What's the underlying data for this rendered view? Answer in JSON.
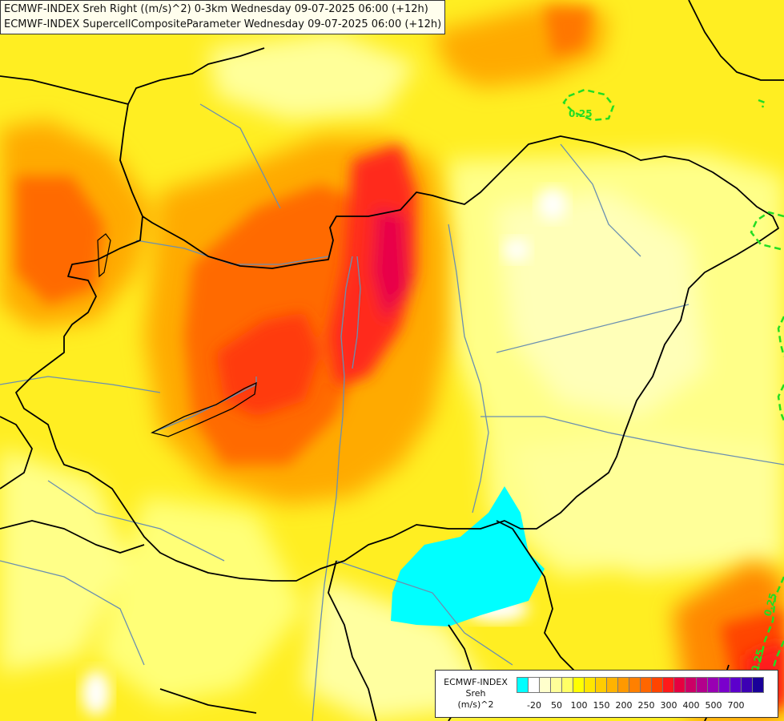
{
  "title": {
    "line1": "ECMWF-INDEX Sreh Right ((m/s)^2) 0-3km Wednesday 09-07-2025 06:00 (+12h)",
    "line2": "ECMWF-INDEX SupercellCompositeParameter Wednesday 09-07-2025 06:00 (+12h)"
  },
  "legend": {
    "source": "ECMWF-INDEX",
    "variable": "Sreh",
    "unit": "(m/s)^2",
    "ticks": [
      "-20",
      "50",
      "100",
      "150",
      "200",
      "250",
      "300",
      "400",
      "500",
      "700"
    ],
    "colors": [
      "#00ffff",
      "#ffffff",
      "#ffffcc",
      "#ffff99",
      "#ffff66",
      "#ffff00",
      "#ffe600",
      "#ffcc00",
      "#ffb300",
      "#ff9900",
      "#ff8000",
      "#ff6600",
      "#ff4400",
      "#ff1a1a",
      "#e60040",
      "#cc0066",
      "#b3008c",
      "#9900b3",
      "#7a00cc",
      "#5c00cc",
      "#3d00b3",
      "#1a0099"
    ]
  },
  "contour_labels": [
    "0.25",
    "0.25",
    "0.25"
  ],
  "colors": {
    "scp_contour": "#22dd22",
    "border": "#000000",
    "river": "#6a8fb0"
  }
}
